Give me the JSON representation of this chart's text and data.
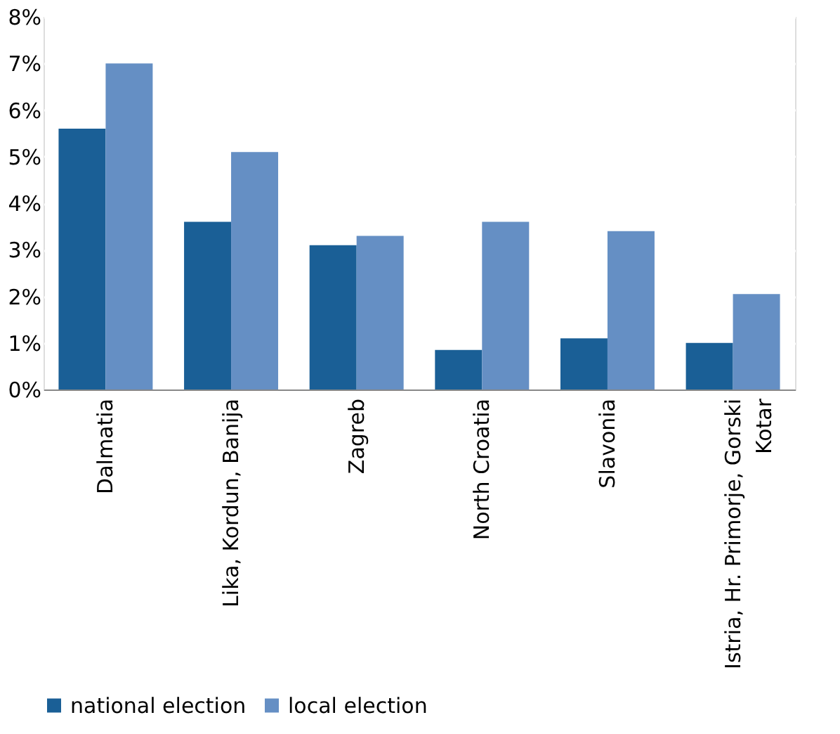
{
  "chart_data": {
    "type": "bar",
    "categories": [
      "Dalmatia",
      "Lika, Kordun, Banija",
      "Zagreb",
      "North Croatia",
      "Slavonia",
      "Istria, Hr. Primorje, Gorski Kotar"
    ],
    "series": [
      {
        "name": "national election",
        "color": "#1a5f96",
        "values": [
          5.6,
          3.6,
          3.1,
          0.85,
          1.1,
          1.0
        ]
      },
      {
        "name": "local election",
        "color": "#658fc4",
        "values": [
          7.0,
          5.1,
          3.3,
          3.6,
          3.4,
          2.05
        ]
      }
    ],
    "ylim": [
      0,
      8
    ],
    "yticks": [
      {
        "value": 0,
        "label": "0%"
      },
      {
        "value": 1,
        "label": "1%"
      },
      {
        "value": 2,
        "label": "2%"
      },
      {
        "value": 3,
        "label": "3%"
      },
      {
        "value": 4,
        "label": "4%"
      },
      {
        "value": 5,
        "label": "5%"
      },
      {
        "value": 6,
        "label": "6%"
      },
      {
        "value": 7,
        "label": "7%"
      },
      {
        "value": 8,
        "label": "8%"
      }
    ],
    "grid": "y",
    "legend": "bottom"
  }
}
